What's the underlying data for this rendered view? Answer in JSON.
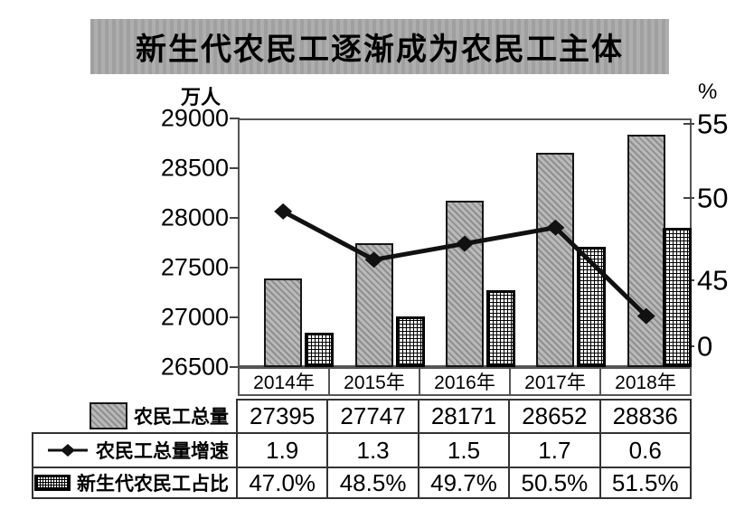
{
  "title": "新生代农民工逐渐成为农民工主体",
  "axes": {
    "left_unit": "万人",
    "right_unit": "%",
    "left_ticks": [
      "29000",
      "28500",
      "28000",
      "27500",
      "27000",
      "26500"
    ],
    "right_ticks": [
      "55",
      "50",
      "45",
      "0"
    ]
  },
  "categories": [
    "2014年",
    "2015年",
    "2016年",
    "2017年",
    "2018年"
  ],
  "table": {
    "rows": [
      {
        "label": "农民工总量",
        "legend": "gray-hatch-swatch",
        "cells": [
          "27395",
          "27747",
          "28171",
          "28652",
          "28836"
        ]
      },
      {
        "label": "农民工总量增速",
        "legend": "line-diamond-marker",
        "cells": [
          "1.9",
          "1.3",
          "1.5",
          "1.7",
          "0.6"
        ]
      },
      {
        "label": "新生代农民工占比",
        "legend": "crosshatch-swatch",
        "cells": [
          "47.0%",
          "48.5%",
          "49.7%",
          "50.5%",
          "51.5%"
        ]
      }
    ]
  },
  "colors": {
    "bar_fill": "#b9b9b9",
    "bar_hatch": "#8f8f8f",
    "line": "#111111",
    "banner_bg": "#a7a7a7",
    "text": "#000000"
  },
  "chart_data": {
    "type": "combo",
    "title": "新生代农民工逐渐成为农民工主体",
    "categories": [
      "2014年",
      "2015年",
      "2016年",
      "2017年",
      "2018年"
    ],
    "left_axis": {
      "label": "万人",
      "min": 26500,
      "max": 29000,
      "ticks": [
        29000,
        28500,
        28000,
        27500,
        27000,
        26500
      ]
    },
    "right_axis": {
      "label": "%",
      "ticks": [
        55,
        50,
        45,
        0
      ],
      "broken_axis": true
    },
    "grid": false,
    "legend_position": "table-left",
    "series": [
      {
        "name": "农民工总量",
        "type": "bar",
        "axis": "left",
        "unit": "万人",
        "values": [
          27395,
          27747,
          28171,
          28652,
          28836
        ]
      },
      {
        "name": "农民工总量增速",
        "type": "line",
        "axis": "right",
        "unit": "%",
        "values": [
          1.9,
          1.3,
          1.5,
          1.7,
          0.6
        ]
      },
      {
        "name": "新生代农民工占比",
        "type": "bar",
        "axis": "right",
        "unit": "%",
        "values": [
          47.0,
          48.5,
          49.7,
          50.5,
          51.5
        ]
      }
    ]
  }
}
